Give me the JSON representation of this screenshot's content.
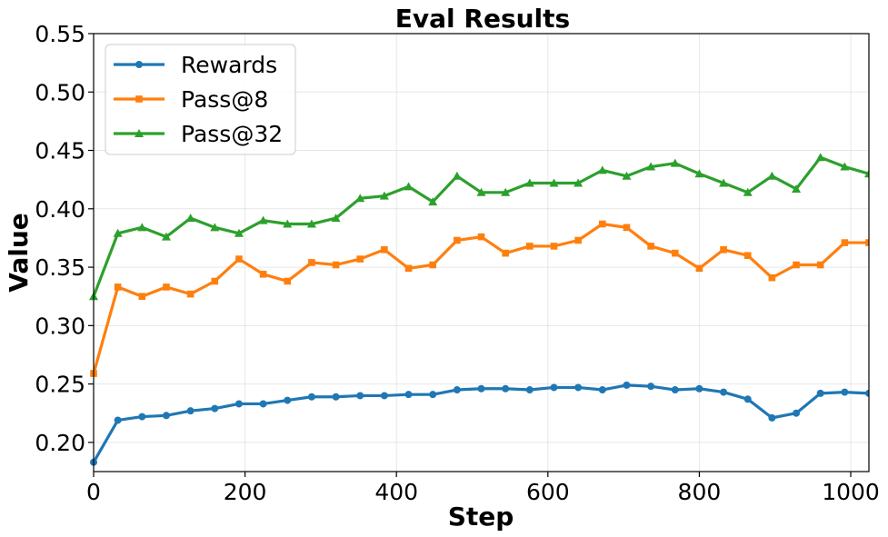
{
  "chart_data": {
    "type": "line",
    "title": "Eval Results",
    "xlabel": "Step",
    "ylabel": "Value",
    "xlim": [
      0,
      1024
    ],
    "ylim": [
      0.175,
      0.55
    ],
    "x_ticks": [
      0,
      200,
      400,
      600,
      800,
      1000
    ],
    "y_ticks": [
      0.2,
      0.25,
      0.3,
      0.35,
      0.4,
      0.45,
      0.5,
      0.55
    ],
    "grid": true,
    "legend_position": "top-left",
    "x": [
      0,
      32,
      64,
      96,
      128,
      160,
      192,
      224,
      256,
      288,
      320,
      352,
      384,
      416,
      448,
      480,
      512,
      544,
      576,
      608,
      640,
      672,
      704,
      736,
      768,
      800,
      832,
      864,
      896,
      928,
      960,
      992,
      1024
    ],
    "series": [
      {
        "name": "Rewards",
        "color": "#1f77b4",
        "marker": "circle",
        "values": [
          0.183,
          0.219,
          0.222,
          0.223,
          0.227,
          0.229,
          0.233,
          0.233,
          0.236,
          0.239,
          0.239,
          0.24,
          0.24,
          0.241,
          0.241,
          0.245,
          0.246,
          0.246,
          0.245,
          0.247,
          0.247,
          0.245,
          0.249,
          0.248,
          0.245,
          0.246,
          0.243,
          0.237,
          0.221,
          0.225,
          0.242,
          0.243,
          0.242
        ]
      },
      {
        "name": "Pass@8",
        "color": "#ff7f0e",
        "marker": "square",
        "values": [
          0.259,
          0.333,
          0.325,
          0.333,
          0.327,
          0.338,
          0.357,
          0.344,
          0.338,
          0.354,
          0.352,
          0.357,
          0.365,
          0.349,
          0.352,
          0.373,
          0.376,
          0.362,
          0.368,
          0.368,
          0.373,
          0.387,
          0.384,
          0.368,
          0.362,
          0.349,
          0.365,
          0.36,
          0.341,
          0.352,
          0.352,
          0.371,
          0.371
        ]
      },
      {
        "name": "Pass@32",
        "color": "#2ca02c",
        "marker": "triangle",
        "values": [
          0.325,
          0.379,
          0.384,
          0.376,
          0.392,
          0.384,
          0.379,
          0.39,
          0.387,
          0.387,
          0.392,
          0.409,
          0.411,
          0.419,
          0.406,
          0.428,
          0.414,
          0.414,
          0.422,
          0.422,
          0.422,
          0.433,
          0.428,
          0.436,
          0.439,
          0.43,
          0.422,
          0.414,
          0.428,
          0.417,
          0.444,
          0.436,
          0.43
        ]
      }
    ]
  }
}
